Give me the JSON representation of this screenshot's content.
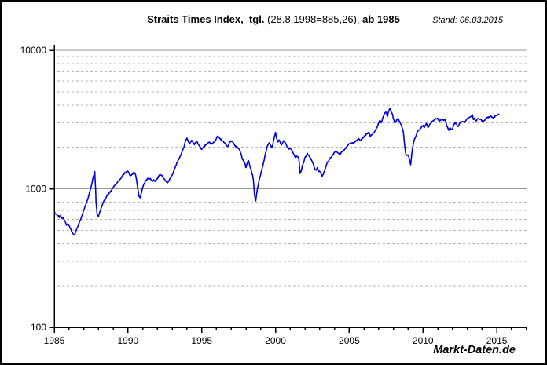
{
  "header": {
    "title_bold_1": "Straits Times Index,  tgl. ",
    "title_normal": "(28.8.1998=885,26), ",
    "title_bold_2": "ab 1985",
    "stand": "Stand: 06.03.2015"
  },
  "watermark": "Markt-Daten.de",
  "colors": {
    "line": "#0000dd",
    "grid_major": "#999999",
    "grid_minor": "#b3b3b3",
    "axis": "#000000"
  },
  "chart_data": {
    "type": "line",
    "title": "Straits Times Index, tgl. (28.8.1998=885,26), ab 1985",
    "as_of": "Stand: 06.03.2015",
    "series_name": "Straits Times Index",
    "y_scale": "log",
    "ylim": [
      100,
      10000
    ],
    "y_ticks": [
      10000,
      1000,
      100
    ],
    "y_tick_labels": [
      "10000",
      "1000",
      "100"
    ],
    "xlim": [
      1985,
      2017
    ],
    "x_major_ticks": [
      1985,
      1990,
      1995,
      2000,
      2005,
      2010,
      2015
    ],
    "x_tick_labels": [
      "1985",
      "1990",
      "1995",
      "2000",
      "2005",
      "2010",
      "2015"
    ],
    "x_minor_tick_step_years": 1,
    "grid": "horizontal, solid at decades, dashed at 2-9 multiples",
    "legend": "none",
    "x_start_year": 1985.0,
    "x_interval_months": 1,
    "x_end_year": 2015.17,
    "values": [
      680,
      660,
      655,
      640,
      620,
      640,
      610,
      620,
      600,
      580,
      545,
      560,
      540,
      520,
      495,
      480,
      465,
      475,
      505,
      530,
      560,
      590,
      620,
      660,
      700,
      745,
      780,
      830,
      890,
      960,
      1030,
      1130,
      1240,
      1330,
      800,
      650,
      630,
      680,
      720,
      760,
      800,
      830,
      860,
      890,
      920,
      940,
      960,
      990,
      1020,
      1050,
      1080,
      1100,
      1130,
      1150,
      1180,
      1220,
      1260,
      1290,
      1310,
      1330,
      1340,
      1290,
      1240,
      1260,
      1290,
      1310,
      1280,
      1150,
      1000,
      880,
      860,
      940,
      1030,
      1080,
      1120,
      1160,
      1190,
      1170,
      1190,
      1160,
      1130,
      1160,
      1130,
      1160,
      1190,
      1230,
      1270,
      1250,
      1230,
      1190,
      1160,
      1130,
      1100,
      1130,
      1180,
      1220,
      1260,
      1320,
      1400,
      1470,
      1550,
      1610,
      1680,
      1750,
      1850,
      1950,
      2080,
      2230,
      2320,
      2200,
      2100,
      2180,
      2230,
      2150,
      2080,
      2150,
      2200,
      2100,
      2050,
      1980,
      1920,
      1980,
      2020,
      2060,
      2100,
      2140,
      2170,
      2130,
      2100,
      2130,
      2170,
      2230,
      2320,
      2400,
      2350,
      2300,
      2260,
      2220,
      2160,
      2110,
      2060,
      2020,
      2090,
      2180,
      2220,
      2180,
      2120,
      2050,
      2000,
      1990,
      1960,
      1880,
      1780,
      1650,
      1580,
      1530,
      1420,
      1530,
      1600,
      1480,
      1380,
      1280,
      1160,
      885,
      820,
      960,
      1070,
      1180,
      1280,
      1380,
      1500,
      1650,
      1820,
      1980,
      2080,
      2150,
      2050,
      1980,
      2120,
      2350,
      2550,
      2300,
      2180,
      2250,
      2130,
      2080,
      2160,
      2220,
      2150,
      2050,
      1980,
      1930,
      1960,
      1920,
      1850,
      1760,
      1690,
      1720,
      1700,
      1640,
      1290,
      1350,
      1480,
      1560,
      1680,
      1730,
      1800,
      1750,
      1700,
      1620,
      1550,
      1480,
      1400,
      1360,
      1420,
      1340,
      1330,
      1290,
      1230,
      1280,
      1350,
      1450,
      1540,
      1580,
      1630,
      1680,
      1720,
      1770,
      1830,
      1870,
      1840,
      1810,
      1760,
      1790,
      1850,
      1880,
      1910,
      1950,
      2010,
      2060,
      2110,
      2130,
      2150,
      2130,
      2160,
      2190,
      2230,
      2260,
      2290,
      2230,
      2280,
      2320,
      2380,
      2430,
      2480,
      2530,
      2560,
      2380,
      2440,
      2490,
      2540,
      2620,
      2720,
      2850,
      2980,
      3110,
      3000,
      3180,
      3380,
      3530,
      3560,
      3320,
      3600,
      3830,
      3620,
      3480,
      3180,
      2990,
      3080,
      3160,
      3200,
      3050,
      2920,
      2760,
      2560,
      2080,
      1780,
      1740,
      1750,
      1620,
      1490,
      1830,
      2080,
      2280,
      2370,
      2540,
      2640,
      2660,
      2720,
      2840,
      2870,
      2760,
      2890,
      2950,
      2770,
      2850,
      2950,
      3010,
      3090,
      3140,
      3190,
      3200,
      3230,
      3060,
      3110,
      3150,
      3160,
      3110,
      3190,
      2920,
      2780,
      2640,
      2760,
      2670,
      2710,
      2900,
      2990,
      2960,
      2810,
      2850,
      2990,
      3040,
      3060,
      3040,
      3010,
      3130,
      3210,
      3270,
      3300,
      3320,
      3440,
      3160,
      3240,
      3040,
      3180,
      3210,
      3180,
      3170,
      3100,
      3040,
      3110,
      3200,
      3250,
      3260,
      3310,
      3330,
      3290,
      3250,
      3310,
      3360,
      3370,
      3410,
      3450
    ]
  }
}
